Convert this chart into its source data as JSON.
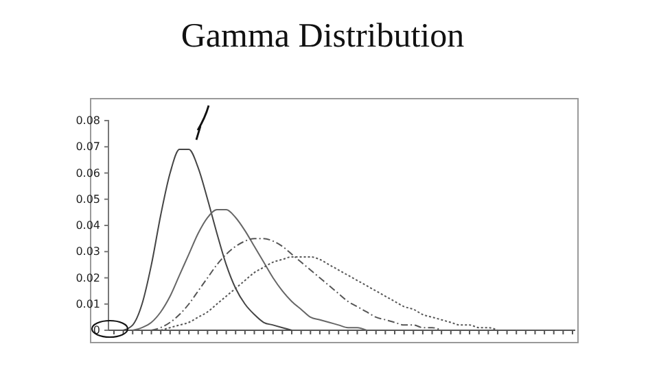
{
  "chart_data": {
    "type": "line",
    "title": "Gamma Distribution",
    "categories": [
      null,
      null,
      null,
      null,
      null,
      null,
      null,
      null,
      null,
      null,
      null,
      null,
      null,
      null,
      null,
      null,
      null,
      null,
      null,
      null,
      null,
      null,
      null,
      null,
      null,
      null,
      null,
      null,
      null,
      null,
      null,
      null,
      null,
      null,
      null,
      null,
      null,
      null,
      null,
      null,
      null,
      null,
      null,
      null,
      null,
      null,
      null,
      null,
      null,
      null
    ],
    "series": [
      {
        "color": "#444444",
        "line_style": "solid",
        "values": [
          null,
          0,
          0.002,
          0.01,
          0.025,
          0.044,
          0.06,
          0.069,
          0.069,
          0.062,
          0.05,
          0.037,
          0.025,
          0.016,
          0.01,
          0.006,
          0.003,
          0.002,
          0.001,
          0,
          null,
          null,
          null,
          null,
          null,
          null,
          null,
          null,
          null,
          null,
          null,
          null,
          null,
          null,
          null,
          null,
          null,
          null,
          null,
          null,
          null,
          null,
          null,
          null,
          null,
          null,
          null,
          null,
          null,
          null
        ]
      },
      {
        "color": "#666666",
        "line_style": "solid",
        "values": [
          null,
          null,
          0,
          0.001,
          0.003,
          0.007,
          0.013,
          0.021,
          0.029,
          0.037,
          0.043,
          0.046,
          0.046,
          0.043,
          0.038,
          0.032,
          0.026,
          0.02,
          0.015,
          0.011,
          0.008,
          0.005,
          0.004,
          0.003,
          0.002,
          0.001,
          0.001,
          0,
          null,
          null,
          null,
          null,
          null,
          null,
          null,
          null,
          null,
          null,
          null,
          null,
          null,
          null,
          null,
          null,
          null,
          null,
          null,
          null,
          null,
          null
        ]
      },
      {
        "color": "#555555",
        "line_style": "dashed",
        "values": [
          null,
          null,
          null,
          null,
          0,
          0.001,
          0.003,
          0.006,
          0.01,
          0.015,
          0.02,
          0.025,
          0.029,
          0.032,
          0.034,
          0.035,
          0.035,
          0.034,
          0.032,
          0.029,
          0.026,
          0.023,
          0.02,
          0.017,
          0.014,
          0.011,
          0.009,
          0.007,
          0.005,
          0.004,
          0.003,
          0.002,
          0.002,
          0.001,
          0.001,
          0,
          null,
          null,
          null,
          null,
          null,
          null,
          null,
          null,
          null,
          null,
          null,
          null,
          null,
          null
        ]
      },
      {
        "color": "#555555",
        "line_style": "dotted",
        "values": [
          null,
          null,
          null,
          null,
          null,
          0,
          0.001,
          0.002,
          0.003,
          0.005,
          0.007,
          0.01,
          0.013,
          0.016,
          0.019,
          0.022,
          0.024,
          0.026,
          0.027,
          0.028,
          0.028,
          0.028,
          0.027,
          0.025,
          0.023,
          0.021,
          0.019,
          0.017,
          0.015,
          0.013,
          0.011,
          0.009,
          0.008,
          0.006,
          0.005,
          0.004,
          0.003,
          0.002,
          0.002,
          0.001,
          0.001,
          0,
          null,
          null,
          null,
          null,
          null,
          null,
          null,
          null
        ]
      }
    ],
    "ylim": [
      0,
      0.08
    ],
    "yticks": [
      0,
      0.01,
      0.02,
      0.03,
      0.04,
      0.05,
      0.06,
      0.07,
      0.08
    ],
    "tick_labels": "y",
    "grid": false,
    "marker": "none"
  }
}
